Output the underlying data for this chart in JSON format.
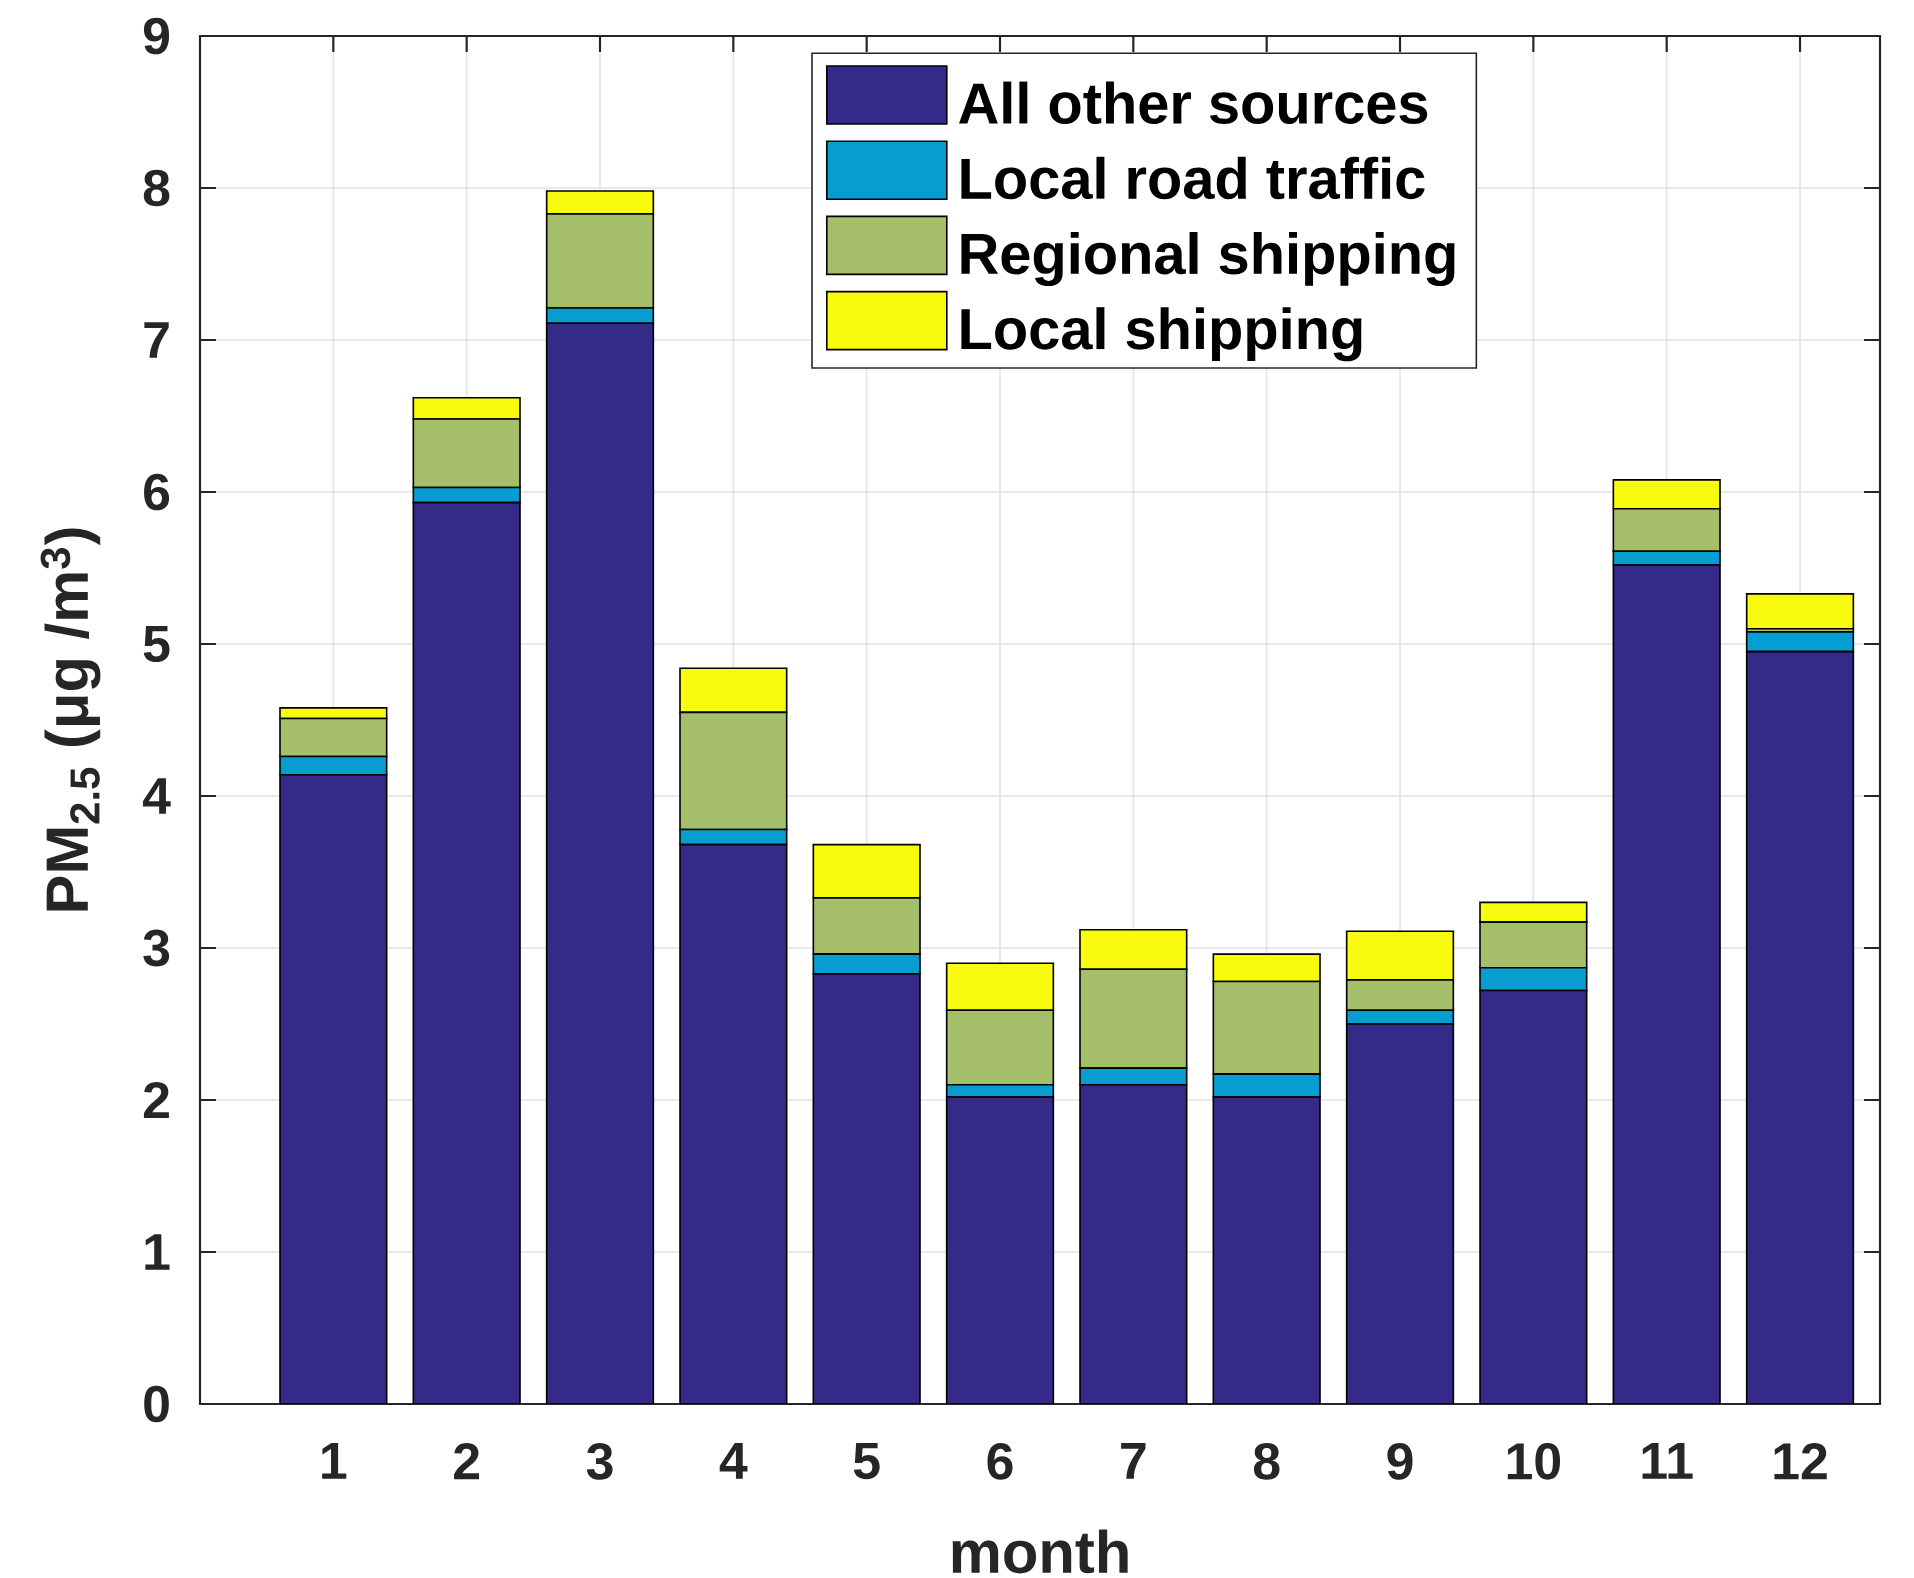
{
  "chart_data": {
    "type": "bar",
    "stacked": true,
    "xlabel": "month",
    "ylabel": "PM$_{2.5}$ (μg /m$^{3}$)",
    "categories": [
      "1",
      "2",
      "3",
      "4",
      "5",
      "6",
      "7",
      "8",
      "9",
      "10",
      "11",
      "12"
    ],
    "series": [
      {
        "name": "All other sources",
        "color": "#352a87",
        "values": [
          4.14,
          5.93,
          7.11,
          3.68,
          2.83,
          2.02,
          2.1,
          2.02,
          2.5,
          2.72,
          5.52,
          4.95
        ]
      },
      {
        "name": "Local road traffic",
        "color": "#079dd1",
        "values": [
          0.12,
          0.1,
          0.1,
          0.1,
          0.13,
          0.08,
          0.11,
          0.15,
          0.09,
          0.15,
          0.09,
          0.13
        ]
      },
      {
        "name": "Regional shipping",
        "color": "#a5be6a",
        "values": [
          0.25,
          0.45,
          0.62,
          0.77,
          0.37,
          0.49,
          0.65,
          0.61,
          0.2,
          0.3,
          0.28,
          0.02
        ]
      },
      {
        "name": "Local shipping",
        "color": "#f9fb0e",
        "values": [
          0.07,
          0.14,
          0.15,
          0.29,
          0.35,
          0.31,
          0.26,
          0.18,
          0.32,
          0.13,
          0.19,
          0.23
        ]
      }
    ],
    "ylim": [
      0,
      9
    ],
    "yticks": [
      0,
      1,
      2,
      3,
      4,
      5,
      6,
      7,
      8,
      9
    ],
    "grid": true,
    "legend": "top"
  }
}
